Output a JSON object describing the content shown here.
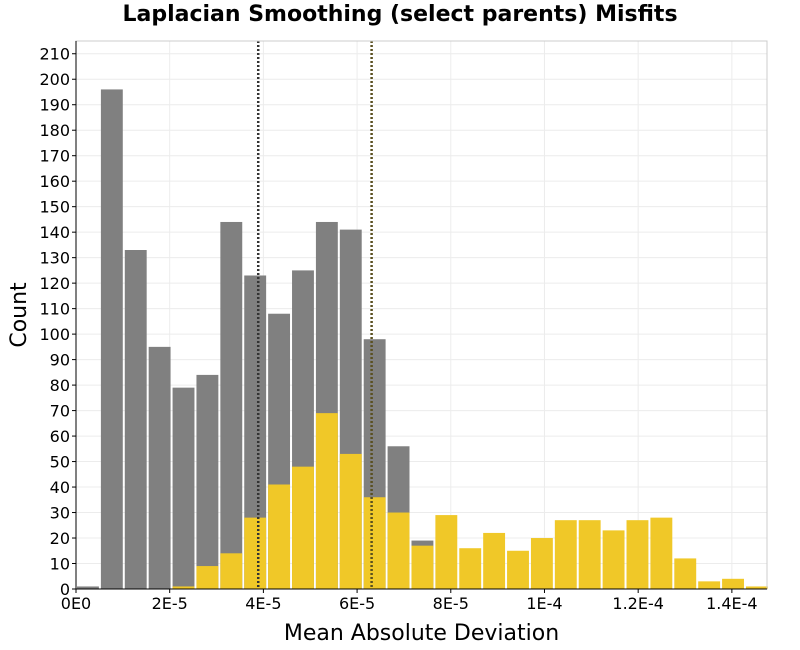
{
  "chart_data": {
    "type": "bar",
    "title": "Laplacian Smoothing (select parents) Misfits",
    "xlabel": "Mean Absolute Deviation",
    "ylabel": "Count",
    "xlim": [
      0,
      0.0001475
    ],
    "ylim": [
      0,
      215
    ],
    "x_ticks": [
      {
        "value": 0,
        "label": "0E0"
      },
      {
        "value": 2e-05,
        "label": "2E-5"
      },
      {
        "value": 4e-05,
        "label": "4E-5"
      },
      {
        "value": 6e-05,
        "label": "6E-5"
      },
      {
        "value": 8e-05,
        "label": "8E-5"
      },
      {
        "value": 0.0001,
        "label": "1E-4"
      },
      {
        "value": 0.00012,
        "label": "1.2E-4"
      },
      {
        "value": 0.00014,
        "label": "1.4E-4"
      }
    ],
    "y_ticks": [
      0,
      10,
      20,
      30,
      40,
      50,
      60,
      70,
      80,
      90,
      100,
      110,
      120,
      130,
      140,
      150,
      160,
      170,
      180,
      190,
      200,
      210
    ],
    "bin_width": 5.1e-06,
    "bin_start": 0,
    "series": [
      {
        "color": "#808080",
        "values": [
          1,
          196,
          133,
          95,
          79,
          84,
          144,
          123,
          108,
          125,
          144,
          141,
          98,
          56,
          19,
          0,
          0,
          0,
          0,
          0,
          0,
          0,
          0,
          0,
          0,
          0,
          0,
          0,
          0
        ]
      },
      {
        "color": "#f0c828",
        "values": [
          0,
          0,
          0,
          0,
          1,
          9,
          14,
          28,
          41,
          48,
          69,
          53,
          36,
          30,
          17,
          29,
          16,
          22,
          15,
          20,
          27,
          27,
          23,
          27,
          28,
          12,
          3,
          4,
          1
        ]
      }
    ],
    "reference_lines": [
      {
        "x": 3.89e-05,
        "color": "#333333"
      },
      {
        "x": 6.31e-05,
        "color": "#5a5020"
      }
    ],
    "grid": true
  }
}
